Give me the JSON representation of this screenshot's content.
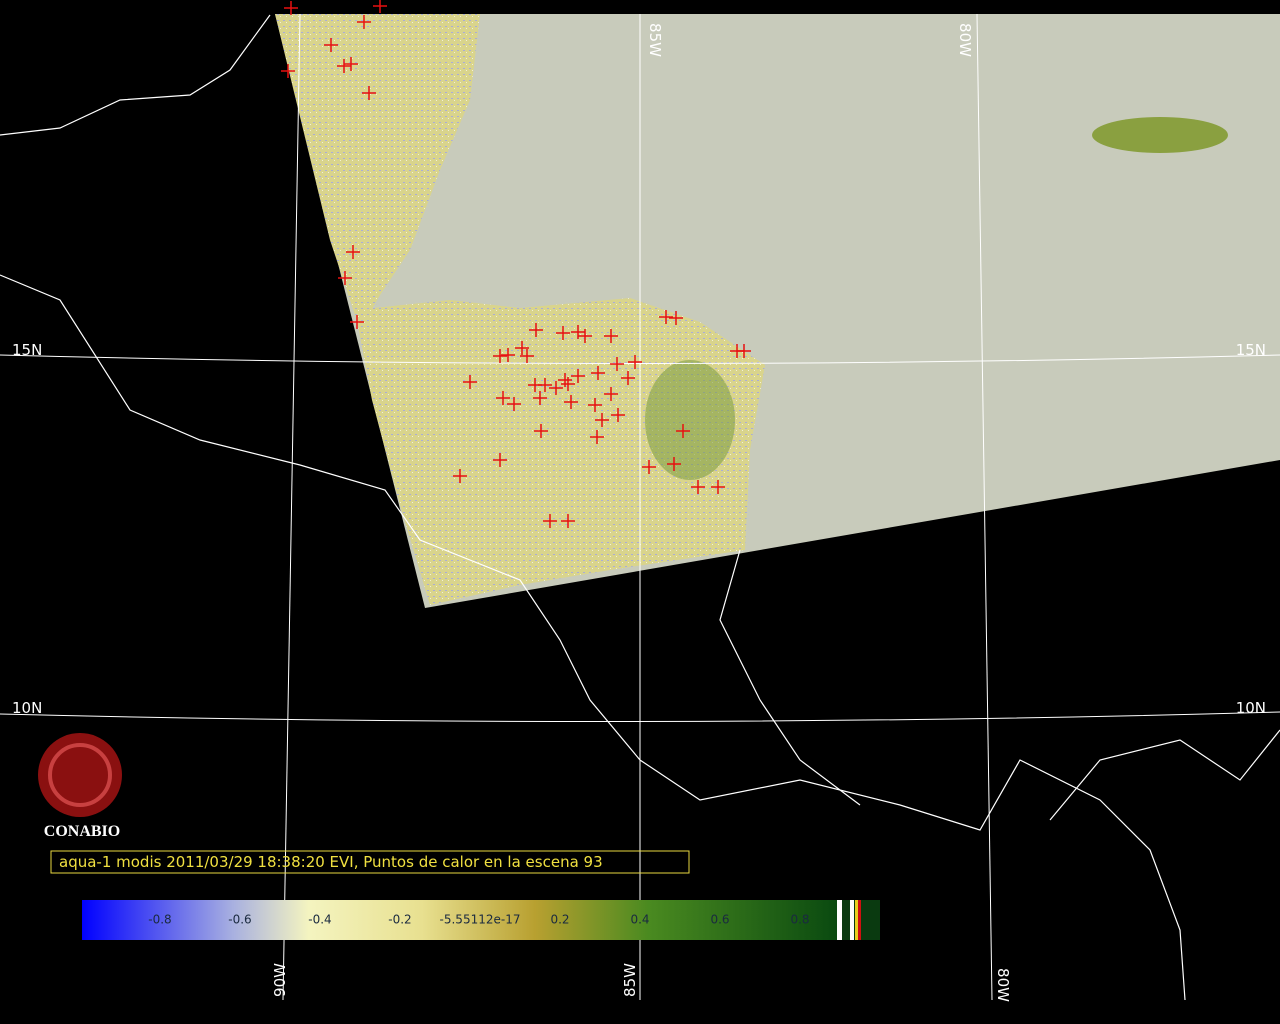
{
  "map": {
    "grid_labels": {
      "top": [
        "85W",
        "80W"
      ],
      "left": [
        "15N",
        "10N"
      ],
      "right": [
        "15N",
        "10N"
      ],
      "bottom": [
        "90W",
        "85W",
        "80W"
      ]
    },
    "logo": "CONABIO",
    "caption": "aqua-1 modis 2011/03/29 18:38:20 EVI, Puntos de calor en la escena 93",
    "colorbar_labels": [
      "-0.8",
      "-0.6",
      "-0.4",
      "-0.2",
      "-5.55112e-17",
      "0.2",
      "0.4",
      "0.6",
      "0.8"
    ]
  }
}
